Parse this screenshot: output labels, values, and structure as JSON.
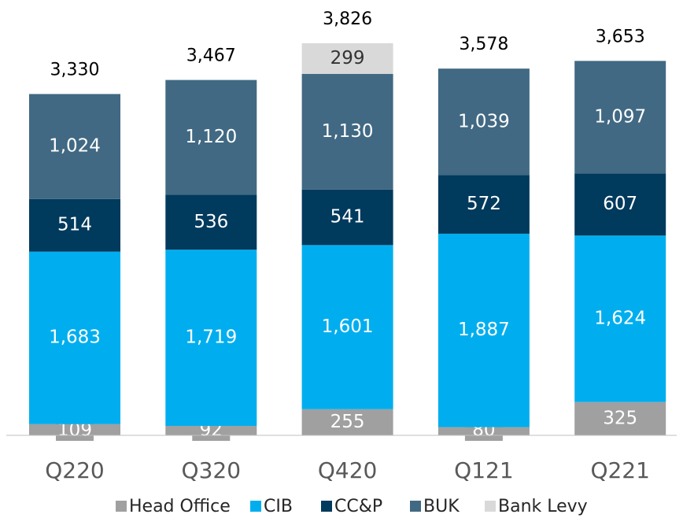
{
  "chart_data": {
    "type": "stacked-bar",
    "categories": [
      "Q220",
      "Q320",
      "Q420",
      "Q121",
      "Q221"
    ],
    "series": [
      {
        "name": "Head Office",
        "color": "#a0a0a0",
        "values": [
          109,
          92,
          255,
          80,
          325
        ],
        "value_labels": [
          "109",
          "92",
          "255",
          "80",
          "325"
        ]
      },
      {
        "name": "CIB",
        "color": "#00aeef",
        "values": [
          1683,
          1719,
          1601,
          1887,
          1624
        ],
        "value_labels": [
          "1,683",
          "1,719",
          "1,601",
          "1,887",
          "1,624"
        ]
      },
      {
        "name": "CC&P",
        "color": "#003a5d",
        "values": [
          514,
          536,
          541,
          572,
          607
        ],
        "value_labels": [
          "514",
          "536",
          "541",
          "572",
          "607"
        ]
      },
      {
        "name": "BUK",
        "color": "#416983",
        "values": [
          1024,
          1120,
          1130,
          1039,
          1097
        ],
        "value_labels": [
          "1,024",
          "1,120",
          "1,130",
          "1,039",
          "1,097"
        ]
      },
      {
        "name": "Bank Levy",
        "color": "#d9d9d9",
        "values": [
          null,
          null,
          299,
          null,
          null
        ],
        "value_labels": [
          null,
          null,
          "299",
          null,
          null
        ]
      }
    ],
    "totals": {
      "values": [
        3330,
        3467,
        3826,
        3578,
        3653
      ],
      "value_labels": [
        "3,330",
        "3,467",
        "3,826",
        "3,578",
        "3,653"
      ]
    },
    "legend": "bottom"
  }
}
